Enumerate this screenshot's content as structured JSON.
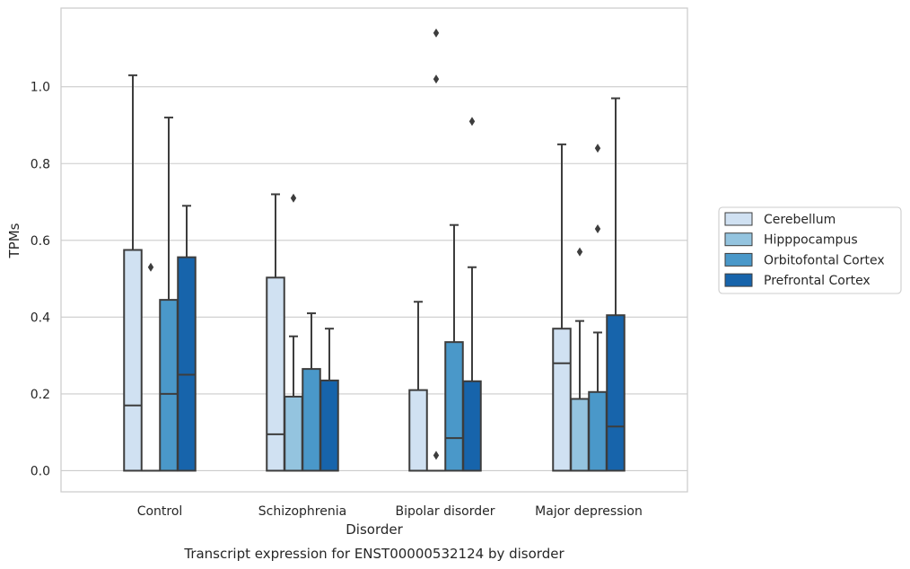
{
  "chart_data": {
    "type": "box",
    "title": "",
    "caption": "Transcript expression for ENST00000532124 by disorder",
    "xlabel": "Disorder",
    "ylabel": "TPMs",
    "ylim": [
      -0.055,
      1.205
    ],
    "yticks": [
      "0.0",
      "0.2",
      "0.4",
      "0.6",
      "0.8",
      "1.0"
    ],
    "grid": true,
    "legend_position": "right",
    "categories": [
      "Control",
      "Schizophrenia",
      "Bipolar disorder",
      "Major depression"
    ],
    "series": [
      {
        "name": "Cerebellum",
        "color": "#d0e1f2",
        "boxes": [
          {
            "q1": 0.0,
            "median": 0.17,
            "q3": 0.575,
            "whisker_low": 0.0,
            "whisker_high": 1.03,
            "outliers": []
          },
          {
            "q1": 0.0,
            "median": 0.095,
            "q3": 0.503,
            "whisker_low": 0.0,
            "whisker_high": 0.72,
            "outliers": []
          },
          {
            "q1": 0.0,
            "median": 0.0,
            "q3": 0.21,
            "whisker_low": 0.0,
            "whisker_high": 0.44,
            "outliers": []
          },
          {
            "q1": 0.0,
            "median": 0.28,
            "q3": 0.37,
            "whisker_low": 0.0,
            "whisker_high": 0.85,
            "outliers": []
          }
        ]
      },
      {
        "name": "Hipppocampus",
        "color": "#94c4df",
        "boxes": [
          {
            "q1": 0.0,
            "median": 0.0,
            "q3": 0.0,
            "whisker_low": 0.0,
            "whisker_high": 0.0,
            "outliers": [
              0.53
            ]
          },
          {
            "q1": 0.0,
            "median": 0.0,
            "q3": 0.193,
            "whisker_low": 0.0,
            "whisker_high": 0.35,
            "outliers": [
              0.71
            ]
          },
          {
            "q1": 0.0,
            "median": 0.0,
            "q3": 0.0,
            "whisker_low": 0.0,
            "whisker_high": 0.0,
            "outliers": [
              0.04,
              1.02,
              1.14
            ]
          },
          {
            "q1": 0.0,
            "median": 0.0,
            "q3": 0.187,
            "whisker_low": 0.0,
            "whisker_high": 0.39,
            "outliers": [
              0.57
            ]
          }
        ]
      },
      {
        "name": "Orbitofontal Cortex",
        "color": "#4a98c9",
        "boxes": [
          {
            "q1": 0.0,
            "median": 0.2,
            "q3": 0.445,
            "whisker_low": 0.0,
            "whisker_high": 0.92,
            "outliers": []
          },
          {
            "q1": 0.0,
            "median": 0.0,
            "q3": 0.265,
            "whisker_low": 0.0,
            "whisker_high": 0.41,
            "outliers": []
          },
          {
            "q1": 0.0,
            "median": 0.085,
            "q3": 0.335,
            "whisker_low": 0.0,
            "whisker_high": 0.64,
            "outliers": []
          },
          {
            "q1": 0.0,
            "median": 0.0,
            "q3": 0.205,
            "whisker_low": 0.0,
            "whisker_high": 0.36,
            "outliers": [
              0.63,
              0.84
            ]
          }
        ]
      },
      {
        "name": "Prefrontal Cortex",
        "color": "#1764ab",
        "boxes": [
          {
            "q1": 0.0,
            "median": 0.25,
            "q3": 0.556,
            "whisker_low": 0.0,
            "whisker_high": 0.69,
            "outliers": []
          },
          {
            "q1": 0.0,
            "median": 0.0,
            "q3": 0.235,
            "whisker_low": 0.0,
            "whisker_high": 0.37,
            "outliers": []
          },
          {
            "q1": 0.0,
            "median": 0.0,
            "q3": 0.233,
            "whisker_low": 0.0,
            "whisker_high": 0.53,
            "outliers": [
              0.91
            ]
          },
          {
            "q1": 0.0,
            "median": 0.115,
            "q3": 0.405,
            "whisker_low": 0.0,
            "whisker_high": 0.97,
            "outliers": []
          }
        ]
      }
    ]
  }
}
